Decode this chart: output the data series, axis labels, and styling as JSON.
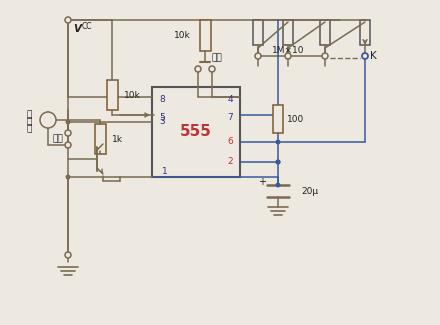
{
  "bg_color": "#ede8e0",
  "lc": "#7a6a50",
  "bc": "#3a5a9a",
  "rc": "#aa3333",
  "tc": "#222222",
  "vcc_label": "V",
  "vcc_sub": "CC",
  "labels": {
    "10k_left": "10k",
    "10k_top": "10k",
    "1k": "1k",
    "100": "100",
    "20u": "20μ",
    "1Mx10": "1M×10",
    "fufu": "强复",
    "start": "启动",
    "ind1": "指",
    "ind2": "示",
    "ind3": "灯",
    "K": "K",
    "555": "555",
    "pin8": "8",
    "pin4": "4",
    "pin7": "7",
    "pin6": "6",
    "pin5": "5",
    "pin3": "3",
    "pin2": "2",
    "pin1": "1",
    "plus": "+"
  }
}
